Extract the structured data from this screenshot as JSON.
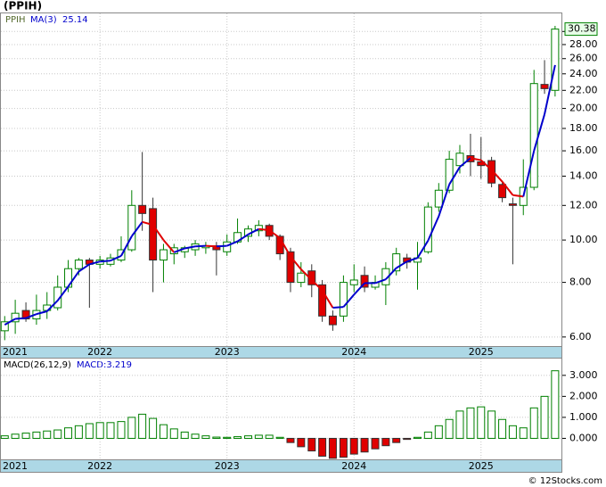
{
  "chart_data": [
    {
      "type": "candlestick",
      "title": "(PPIH)",
      "symbol": "PPIH",
      "x": [
        2021.25,
        2021.333,
        2021.417,
        2021.5,
        2021.583,
        2021.667,
        2021.75,
        2021.833,
        2021.917,
        2022,
        2022.083,
        2022.167,
        2022.25,
        2022.333,
        2022.417,
        2022.5,
        2022.583,
        2022.667,
        2022.75,
        2022.833,
        2022.917,
        2023,
        2023.083,
        2023.167,
        2023.25,
        2023.333,
        2023.417,
        2023.5,
        2023.583,
        2023.667,
        2023.75,
        2023.833,
        2023.917,
        2024,
        2024.083,
        2024.167,
        2024.25,
        2024.333,
        2024.417,
        2024.5,
        2024.583,
        2024.667,
        2024.75,
        2024.833,
        2024.917,
        2025,
        2025.083,
        2025.167,
        2025.25,
        2025.333,
        2025.417,
        2025.5,
        2025.583
      ],
      "open": [
        6.2,
        6.5,
        6.9,
        6.6,
        6.9,
        7.0,
        7.8,
        8.6,
        9.0,
        8.8,
        8.8,
        9.0,
        9.5,
        12.0,
        11.8,
        9.0,
        9.3,
        9.4,
        9.5,
        9.6,
        9.7,
        9.4,
        9.9,
        10.2,
        10.5,
        10.8,
        10.2,
        9.4,
        8.0,
        8.5,
        7.9,
        6.7,
        6.7,
        7.9,
        8.3,
        7.8,
        7.9,
        8.5,
        9.1,
        8.9,
        9.4,
        11.9,
        13.0,
        14.8,
        15.6,
        15.1,
        15.2,
        13.4,
        12.1,
        12.0,
        13.2,
        22.7,
        22.0
      ],
      "high": [
        6.7,
        7.3,
        7.2,
        7.5,
        7.6,
        8.3,
        9.0,
        9.1,
        9.1,
        9.2,
        9.3,
        10.2,
        13.0,
        15.9,
        12.5,
        9.8,
        9.8,
        9.7,
        10.0,
        9.9,
        9.9,
        10.3,
        11.2,
        10.8,
        11.1,
        10.9,
        10.3,
        9.6,
        8.9,
        8.8,
        8.1,
        6.9,
        8.3,
        8.8,
        8.7,
        8.3,
        8.9,
        9.6,
        9.3,
        9.9,
        12.2,
        13.5,
        16.0,
        16.5,
        17.5,
        17.2,
        15.5,
        13.6,
        12.5,
        15.3,
        24.5,
        25.8,
        30.9
      ],
      "low": [
        5.9,
        6.1,
        6.5,
        6.4,
        6.6,
        6.9,
        7.6,
        8.3,
        7.0,
        8.6,
        8.7,
        8.9,
        9.4,
        10.5,
        7.6,
        8.0,
        8.8,
        9.1,
        9.2,
        9.3,
        8.3,
        9.2,
        9.8,
        9.9,
        10.2,
        10.0,
        9.0,
        7.6,
        7.8,
        7.4,
        6.5,
        6.2,
        6.5,
        7.6,
        7.6,
        7.7,
        7.1,
        8.3,
        8.6,
        7.7,
        9.3,
        11.6,
        12.8,
        14.2,
        14.0,
        13.8,
        13.2,
        12.2,
        8.8,
        11.4,
        13.0,
        21.6,
        21.3
      ],
      "close": [
        6.5,
        6.8,
        6.6,
        6.9,
        7.1,
        7.8,
        8.6,
        9.0,
        8.8,
        9.0,
        9.1,
        9.5,
        12.0,
        11.5,
        9.0,
        9.5,
        9.6,
        9.6,
        9.8,
        9.7,
        9.5,
        9.9,
        10.4,
        10.6,
        10.8,
        10.2,
        9.3,
        8.0,
        8.4,
        7.9,
        6.7,
        6.4,
        8.0,
        8.1,
        7.8,
        8.0,
        8.6,
        9.3,
        8.9,
        9.1,
        11.9,
        13.0,
        15.3,
        15.8,
        15.1,
        14.8,
        13.5,
        12.5,
        12.0,
        13.2,
        22.8,
        22.2,
        30.38
      ],
      "up_color": "#008000",
      "down_color": "#e00000",
      "ma": {
        "name": "MA(3)",
        "color": "#0000cc",
        "down_color": "#e00000",
        "values": [
          6.4,
          6.6,
          6.63,
          6.77,
          6.87,
          7.27,
          7.83,
          8.47,
          8.8,
          8.93,
          8.97,
          9.2,
          10.2,
          11.0,
          10.83,
          10.0,
          9.37,
          9.57,
          9.67,
          9.7,
          9.67,
          9.7,
          9.93,
          10.3,
          10.6,
          10.53,
          10.1,
          9.17,
          8.57,
          8.1,
          7.67,
          7.0,
          7.03,
          7.5,
          7.97,
          7.97,
          8.13,
          8.63,
          8.93,
          9.1,
          9.97,
          11.33,
          13.4,
          14.7,
          15.4,
          15.23,
          14.47,
          13.6,
          12.67,
          12.57,
          16.0,
          19.4,
          25.14
        ]
      },
      "log_scale": true,
      "grid": true,
      "xlim": [
        2021.22,
        2025.64
      ],
      "xticks": [
        2021,
        2022,
        2023,
        2024,
        2025
      ],
      "ylim": [
        5.72,
        33
      ],
      "yticks": [
        {
          "value": 6,
          "label": "6.00"
        },
        {
          "value": 8,
          "label": "8.00"
        },
        {
          "value": 10,
          "label": "10.00"
        },
        {
          "value": 12,
          "label": "12.00"
        },
        {
          "value": 14,
          "label": "14.00"
        },
        {
          "value": 16,
          "label": "16.00"
        },
        {
          "value": 18,
          "label": "18.00"
        },
        {
          "value": 20,
          "label": "20.00"
        },
        {
          "value": 22,
          "label": "22.00"
        },
        {
          "value": 24,
          "label": "24.00"
        },
        {
          "value": 26,
          "label": "26.00"
        },
        {
          "value": 28,
          "label": "28.00"
        },
        {
          "value": 30,
          "label": "30.00"
        }
      ]
    },
    {
      "type": "bar",
      "title": "MACD(26,12,9)",
      "value_name": "MACD:",
      "color": "#008000",
      "down_color": "#e00000",
      "x": [
        2021.25,
        2021.333,
        2021.417,
        2021.5,
        2021.583,
        2021.667,
        2021.75,
        2021.833,
        2021.917,
        2022,
        2022.083,
        2022.167,
        2022.25,
        2022.333,
        2022.417,
        2022.5,
        2022.583,
        2022.667,
        2022.75,
        2022.833,
        2022.917,
        2023,
        2023.083,
        2023.167,
        2023.25,
        2023.333,
        2023.417,
        2023.5,
        2023.583,
        2023.667,
        2023.75,
        2023.833,
        2023.917,
        2024,
        2024.083,
        2024.167,
        2024.25,
        2024.333,
        2024.417,
        2024.5,
        2024.583,
        2024.667,
        2024.75,
        2024.833,
        2024.917,
        2025,
        2025.083,
        2025.167,
        2025.25,
        2025.333,
        2025.417,
        2025.5,
        2025.583
      ],
      "values": [
        0.12,
        0.2,
        0.25,
        0.3,
        0.35,
        0.4,
        0.5,
        0.6,
        0.7,
        0.75,
        0.75,
        0.8,
        1.0,
        1.15,
        0.95,
        0.65,
        0.45,
        0.3,
        0.2,
        0.12,
        0.06,
        0.05,
        0.08,
        0.12,
        0.15,
        0.15,
        0.05,
        -0.2,
        -0.4,
        -0.6,
        -0.85,
        -0.95,
        -0.9,
        -0.75,
        -0.65,
        -0.5,
        -0.35,
        -0.2,
        -0.05,
        0.05,
        0.3,
        0.6,
        0.9,
        1.3,
        1.45,
        1.5,
        1.3,
        0.9,
        0.6,
        0.5,
        1.45,
        2.0,
        3.219
      ],
      "grid": true,
      "xlim": [
        2021.22,
        2025.64
      ],
      "xticks": [
        2021,
        2022,
        2023,
        2024,
        2025
      ],
      "ylim": [
        -1.0,
        3.8
      ],
      "yticks": [
        {
          "value": 0,
          "label": "0.000"
        },
        {
          "value": 1,
          "label": "1.000"
        },
        {
          "value": 2,
          "label": "2.000"
        },
        {
          "value": 3,
          "label": "3.000"
        }
      ]
    }
  ],
  "footer": "© 12Stocks.com"
}
